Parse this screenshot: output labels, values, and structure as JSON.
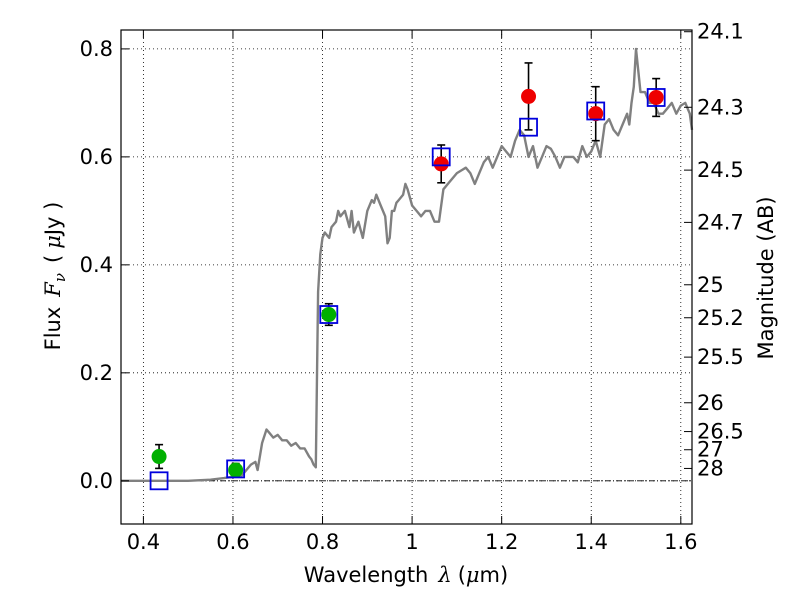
{
  "chart_data": {
    "type": "scatter",
    "xlabel_text": "Wavelength",
    "xlabel_symbol": "λ",
    "xlabel_unit_open": "(",
    "xlabel_unit_mu": "μ",
    "xlabel_unit_rest": "m)",
    "ylabel_text": "Flux",
    "ylabel_symbol": "F",
    "ylabel_sub": "ν",
    "ylabel_unit_open": "(",
    "ylabel_unit_mu": "μ",
    "ylabel_unit_rest": "Jy )",
    "y2label": "Magnitude (AB)",
    "xlim": [
      0.35,
      1.625
    ],
    "ylim": [
      -0.08,
      0.835
    ],
    "xticks": [
      0.4,
      0.6,
      0.8,
      1.0,
      1.2,
      1.4,
      1.6
    ],
    "xtick_labels": [
      "0.4",
      "0.6",
      "0.8",
      "1",
      "1.2",
      "1.4",
      "1.6"
    ],
    "yticks": [
      0.0,
      0.2,
      0.4,
      0.6,
      0.8
    ],
    "ytick_labels": [
      "0.0",
      "0.2",
      "0.4",
      "0.6",
      "0.8"
    ],
    "mag_ticks": [
      24.1,
      24.3,
      24.5,
      24.7,
      25,
      25.2,
      25.5,
      26,
      26.5,
      27,
      28
    ],
    "mag_tick_labels": [
      "24.1",
      "24.3",
      "24.5",
      "24.7",
      "25",
      "25.2",
      "25.5",
      "26",
      "26.5",
      "27",
      "28"
    ],
    "grid": true,
    "zero_line": true,
    "colors": {
      "model": "#808080",
      "observed_green": "#00b000",
      "observed_red": "#ee0000",
      "model_box": "#0000dd",
      "errorbar": "#000000"
    },
    "series": [
      {
        "name": "model-spectrum",
        "kind": "line",
        "x": [
          0.35,
          0.5,
          0.55,
          0.58,
          0.62,
          0.64,
          0.65,
          0.655,
          0.665,
          0.675,
          0.68,
          0.69,
          0.7,
          0.71,
          0.72,
          0.73,
          0.74,
          0.75,
          0.76,
          0.77,
          0.775,
          0.78,
          0.785,
          0.79,
          0.795,
          0.8,
          0.805,
          0.81,
          0.815,
          0.82,
          0.83,
          0.835,
          0.84,
          0.85,
          0.86,
          0.865,
          0.87,
          0.88,
          0.89,
          0.9,
          0.91,
          0.915,
          0.92,
          0.93,
          0.94,
          0.945,
          0.95,
          0.955,
          0.96,
          0.965,
          0.97,
          0.98,
          0.985,
          0.99,
          1.0,
          1.01,
          1.02,
          1.03,
          1.04,
          1.05,
          1.06,
          1.07,
          1.08,
          1.09,
          1.1,
          1.11,
          1.12,
          1.13,
          1.14,
          1.15,
          1.16,
          1.17,
          1.18,
          1.19,
          1.2,
          1.21,
          1.22,
          1.23,
          1.24,
          1.25,
          1.26,
          1.27,
          1.28,
          1.29,
          1.3,
          1.31,
          1.32,
          1.33,
          1.34,
          1.35,
          1.36,
          1.37,
          1.38,
          1.39,
          1.4,
          1.41,
          1.42,
          1.43,
          1.44,
          1.45,
          1.46,
          1.47,
          1.48,
          1.485,
          1.49,
          1.495,
          1.5,
          1.51,
          1.52,
          1.53,
          1.54,
          1.55,
          1.56,
          1.57,
          1.58,
          1.59,
          1.6,
          1.61,
          1.62,
          1.625
        ],
        "y": [
          0.0,
          0.0,
          0.002,
          0.005,
          0.01,
          0.03,
          0.035,
          0.02,
          0.07,
          0.095,
          0.09,
          0.08,
          0.085,
          0.075,
          0.075,
          0.065,
          0.07,
          0.06,
          0.06,
          0.045,
          0.04,
          0.03,
          0.025,
          0.35,
          0.42,
          0.45,
          0.46,
          0.455,
          0.45,
          0.47,
          0.48,
          0.5,
          0.49,
          0.5,
          0.47,
          0.5,
          0.46,
          0.48,
          0.45,
          0.5,
          0.52,
          0.515,
          0.53,
          0.51,
          0.49,
          0.44,
          0.45,
          0.5,
          0.5,
          0.515,
          0.52,
          0.53,
          0.55,
          0.54,
          0.51,
          0.5,
          0.49,
          0.5,
          0.5,
          0.48,
          0.48,
          0.54,
          0.55,
          0.56,
          0.57,
          0.575,
          0.58,
          0.57,
          0.55,
          0.57,
          0.59,
          0.6,
          0.58,
          0.6,
          0.62,
          0.61,
          0.6,
          0.63,
          0.65,
          0.64,
          0.6,
          0.62,
          0.58,
          0.6,
          0.62,
          0.615,
          0.6,
          0.58,
          0.6,
          0.6,
          0.6,
          0.59,
          0.62,
          0.6,
          0.61,
          0.63,
          0.6,
          0.66,
          0.67,
          0.65,
          0.64,
          0.66,
          0.68,
          0.66,
          0.7,
          0.73,
          0.8,
          0.72,
          0.72,
          0.7,
          0.7,
          0.68,
          0.68,
          0.69,
          0.7,
          0.68,
          0.695,
          0.7,
          0.68,
          0.65
        ]
      },
      {
        "name": "observed-optical",
        "kind": "points",
        "color_key": "observed_green",
        "x": [
          0.435,
          0.606,
          0.814
        ],
        "y": [
          0.045,
          0.02,
          0.308
        ],
        "err": [
          0.022,
          0.012,
          0.02
        ]
      },
      {
        "name": "observed-nir",
        "kind": "points",
        "color_key": "observed_red",
        "x": [
          1.065,
          1.26,
          1.41,
          1.545
        ],
        "y": [
          0.587,
          0.712,
          0.68,
          0.71
        ],
        "err": [
          0.035,
          0.062,
          0.05,
          0.035
        ]
      },
      {
        "name": "model-photometry",
        "kind": "squares",
        "color_key": "model_box",
        "x": [
          0.435,
          0.606,
          0.814,
          1.065,
          1.26,
          1.41,
          1.545
        ],
        "y": [
          0.0,
          0.022,
          0.308,
          0.6,
          0.655,
          0.685,
          0.71
        ]
      }
    ]
  }
}
